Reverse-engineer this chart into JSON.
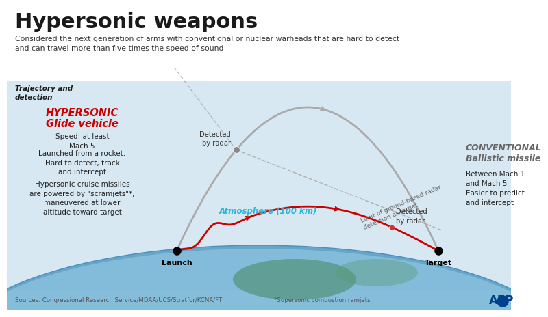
{
  "title": "Hypersonic weapons",
  "subtitle": "Considered the next generation of arms with conventional or nuclear warheads that are hard to detect\nand can travel more than five times the speed of sound",
  "section_label": "Trajectory and\ndetection",
  "bg_color": "#dce8f0",
  "white_top_color": "#ffffff",
  "title_color": "#1a1a1a",
  "subtitle_color": "#333333",
  "hgv_label_line1": "Hypersonic",
  "hgv_label_line2": "Glide vehicle",
  "hgv_color": "#cc0000",
  "hgv_detail1": "Speed: at least\nMach 5",
  "hgv_detail2": "Launched from a rocket.\nHard to detect, track\nand intercept",
  "hgv_detail3": "Hypersonic cruise missiles\nare powered by \"scramjets\"*,\nmaneuvered at lower\naltitude toward target",
  "cbm_label_line1": "Conventional",
  "cbm_label_line2": "Ballistic missile",
  "cbm_color": "#666666",
  "cbm_detail1": "Between Mach 1\nand Mach 5",
  "cbm_detail2": "Easier to predict\nand intercept",
  "detected_left": "Detected\nby radar",
  "detected_right": "Detected\nby radar",
  "radar_limit_label": "Limit of ground-based radar\ndetection at target",
  "atmosphere_label": "Atmosphere (100 km)",
  "atmosphere_color": "#29b6d8",
  "launch_label": "Launch",
  "target_label": "Target",
  "source_text": "Sources: Congressional Research Service/MDAA/UCS/Stratfor/KCNA/FT",
  "footnote_text": "*Supersonic combustion ramjets",
  "afp_color": "#003f8a",
  "bottom_bar_color": "#f5f5f5"
}
